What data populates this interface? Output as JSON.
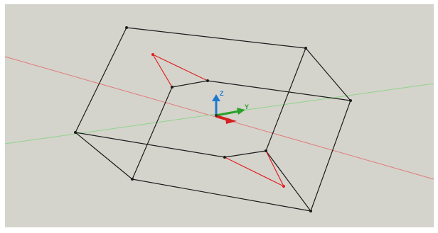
{
  "viewport": {
    "background": "#d4d4cd",
    "edge_color": "#1b1b1b",
    "highlight_color": "#e0201c",
    "world_x_axis_color": "#e07c76",
    "world_y_axis_color": "#8fd48a"
  },
  "ucs": {
    "z_label": "Z",
    "y_label": "Y",
    "z_color": "#1f78d0",
    "y_color": "#2aa12a",
    "x_color": "#d42020"
  }
}
